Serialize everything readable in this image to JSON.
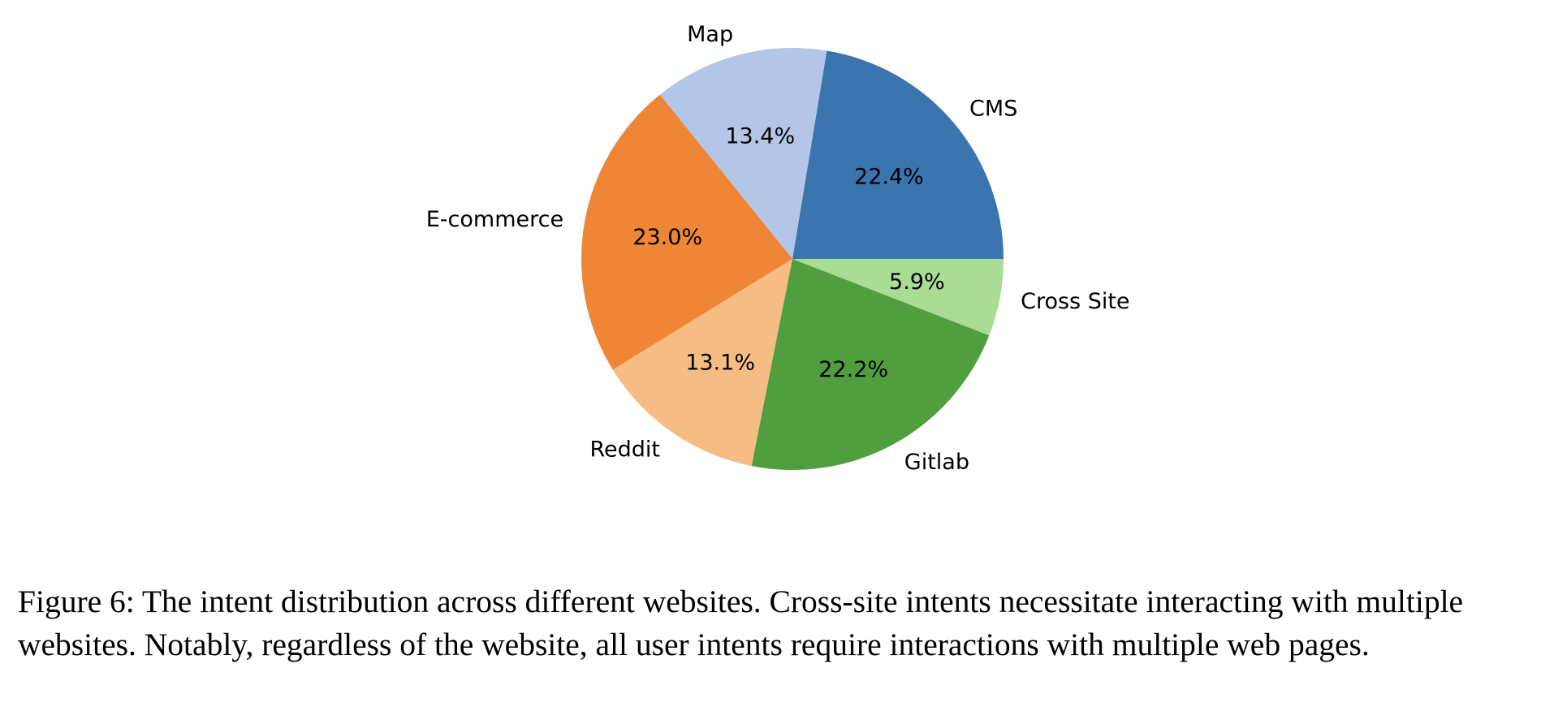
{
  "chart_data": {
    "type": "pie",
    "title": "",
    "start_angle": 0,
    "direction": "counterclockwise",
    "slices": [
      {
        "label": "CMS",
        "value": 22.4,
        "pct_label": "22.4%",
        "color": "#3b75af"
      },
      {
        "label": "Map",
        "value": 13.4,
        "pct_label": "13.4%",
        "color": "#b3c6e7"
      },
      {
        "label": "E-commerce",
        "value": 23.0,
        "pct_label": "23.0%",
        "color": "#ef8636"
      },
      {
        "label": "Reddit",
        "value": 13.1,
        "pct_label": "13.1%",
        "color": "#f5bd84"
      },
      {
        "label": "Gitlab",
        "value": 22.2,
        "pct_label": "22.2%",
        "color": "#519e3e"
      },
      {
        "label": "Cross Site",
        "value": 5.9,
        "pct_label": "5.9%",
        "color": "#a8dd93"
      }
    ]
  },
  "caption": {
    "text": "Figure 6: The intent distribution across different websites. Cross-site intents necessitate interacting with multiple websites. Notably, regardless of the website, all user intents require interactions with multiple web pages."
  }
}
